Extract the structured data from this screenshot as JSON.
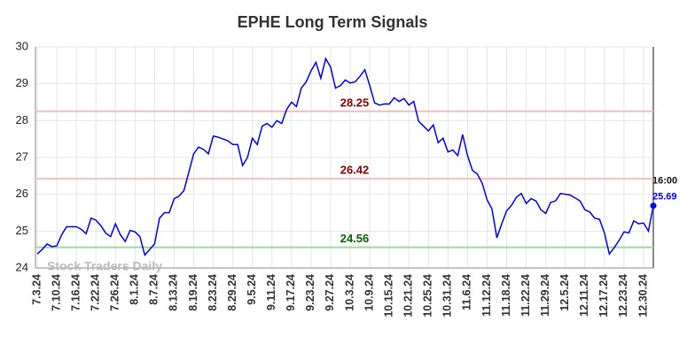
{
  "chart_data": {
    "type": "line",
    "title": "EPHE Long Term Signals",
    "watermark": "Stock Traders Daily",
    "time_label": "16:00",
    "categories": [
      "7.3.24",
      null,
      null,
      null,
      "7.10.24",
      null,
      null,
      null,
      "7.16.24",
      null,
      null,
      null,
      "7.22.24",
      null,
      null,
      null,
      "7.26.24",
      null,
      null,
      null,
      "8.1.24",
      null,
      null,
      null,
      "8.7.24",
      null,
      null,
      null,
      "8.13.24",
      null,
      null,
      null,
      "8.19.24",
      null,
      null,
      null,
      "8.23.24",
      null,
      null,
      null,
      "8.29.24",
      null,
      null,
      null,
      "9.5.24",
      null,
      null,
      null,
      "9.11.24",
      null,
      null,
      null,
      "9.17.24",
      null,
      null,
      null,
      "9.23.24",
      null,
      null,
      null,
      "9.27.24",
      null,
      null,
      null,
      "10.3.24",
      null,
      null,
      null,
      "10.9.24",
      null,
      null,
      null,
      "10.15.24",
      null,
      null,
      null,
      "10.21.24",
      null,
      null,
      null,
      "10.25.24",
      null,
      null,
      null,
      "10.31.24",
      null,
      null,
      null,
      "11.6.24",
      null,
      null,
      null,
      "11.12.24",
      null,
      null,
      null,
      "11.18.24",
      null,
      null,
      null,
      "11.22.24",
      null,
      null,
      null,
      "11.29.24",
      null,
      null,
      null,
      "12.5.24",
      null,
      null,
      null,
      "12.11.24",
      null,
      null,
      null,
      "12.17.24",
      null,
      null,
      null,
      "12.23.24",
      null,
      null,
      null,
      "12.30.24",
      null,
      null
    ],
    "series": [
      {
        "name": "EPHE",
        "color": "#0000ee",
        "values": [
          24.38,
          24.5,
          24.65,
          24.58,
          24.6,
          24.9,
          25.12,
          25.12,
          25.12,
          25.05,
          24.93,
          25.35,
          25.3,
          25.15,
          24.95,
          24.85,
          25.2,
          24.9,
          24.72,
          25.02,
          24.98,
          24.85,
          24.35,
          24.5,
          24.65,
          25.35,
          25.5,
          25.5,
          25.88,
          25.95,
          26.1,
          26.6,
          27.1,
          27.28,
          27.22,
          27.1,
          27.58,
          27.55,
          27.5,
          27.45,
          27.35,
          27.35,
          26.78,
          27.0,
          27.52,
          27.35,
          27.85,
          27.92,
          27.82,
          28.0,
          27.92,
          28.3,
          28.5,
          28.38,
          28.88,
          29.05,
          29.35,
          29.58,
          29.15,
          29.68,
          29.45,
          28.88,
          28.95,
          29.1,
          29.02,
          29.05,
          29.2,
          29.38,
          28.95,
          28.48,
          28.42,
          28.45,
          28.45,
          28.62,
          28.52,
          28.6,
          28.42,
          28.52,
          27.98,
          27.85,
          27.72,
          27.88,
          27.4,
          27.52,
          27.15,
          27.2,
          27.05,
          27.62,
          27.05,
          26.65,
          26.55,
          26.3,
          25.85,
          25.6,
          24.82,
          25.2,
          25.55,
          25.7,
          25.92,
          26.02,
          25.75,
          25.88,
          25.82,
          25.58,
          25.48,
          25.78,
          25.82,
          26.02,
          26.0,
          25.98,
          25.9,
          25.82,
          25.58,
          25.52,
          25.35,
          25.32,
          24.95,
          24.38,
          24.55,
          24.75,
          24.98,
          24.95,
          25.28,
          25.2,
          25.22,
          25.0,
          25.69
        ]
      }
    ],
    "hlines": [
      {
        "value": 28.25,
        "color": "#ffbbbb",
        "label_color": "#8b0000"
      },
      {
        "value": 26.42,
        "color": "#ffbbbb",
        "label_color": "#8b0000"
      },
      {
        "value": 24.56,
        "color": "#99dd99",
        "label_color": "#006400"
      }
    ],
    "ylim": [
      24,
      30
    ],
    "yticks": [
      24,
      25,
      26,
      27,
      28,
      29,
      30
    ],
    "grid": true
  }
}
